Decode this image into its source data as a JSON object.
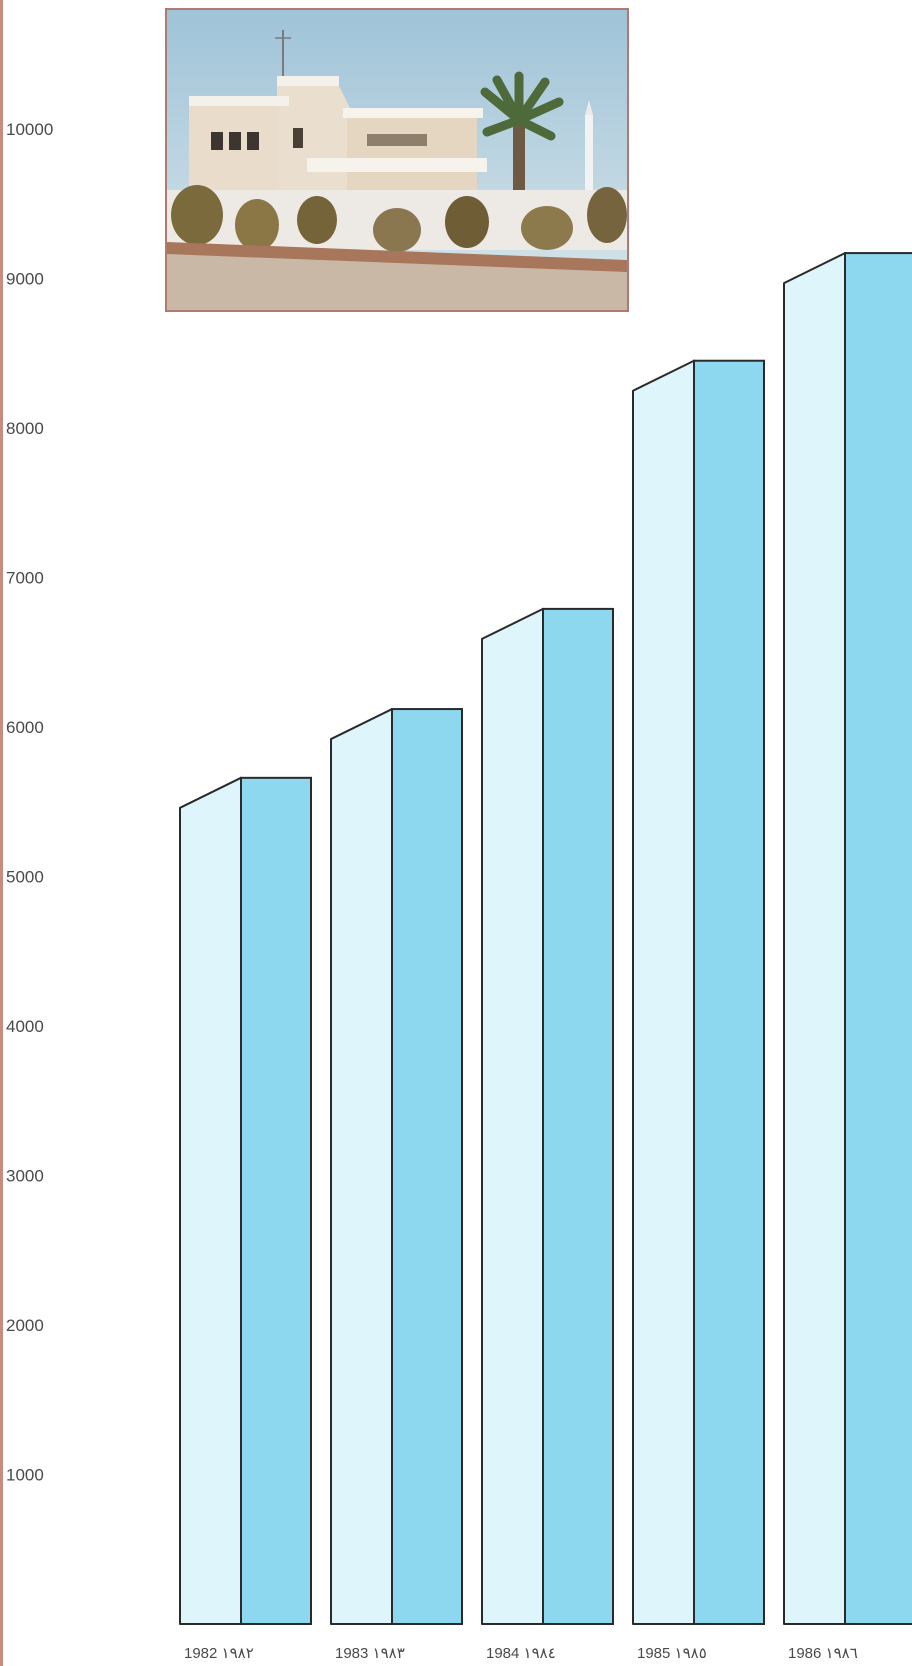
{
  "chart_data": {
    "type": "bar",
    "categories": [
      "1982 ١٩٨٢",
      "1983 ١٩٨٣",
      "1984 ١٩٨٤",
      "1985 ١٩٨٥",
      "1986 ١٩٨٦"
    ],
    "values": [
      5660,
      6120,
      6790,
      8450,
      9170
    ],
    "yticks": [
      "1000",
      "2000",
      "3000",
      "4000",
      "5000",
      "6000",
      "7000",
      "8000",
      "9000",
      "10000"
    ],
    "ylim": [
      0,
      10000
    ],
    "grid": false,
    "colors": {
      "front_face": "#8ed8ef",
      "side_face": "#dff5fc",
      "outline": "#2a2a2a",
      "photo_border": "#b07a72"
    }
  }
}
